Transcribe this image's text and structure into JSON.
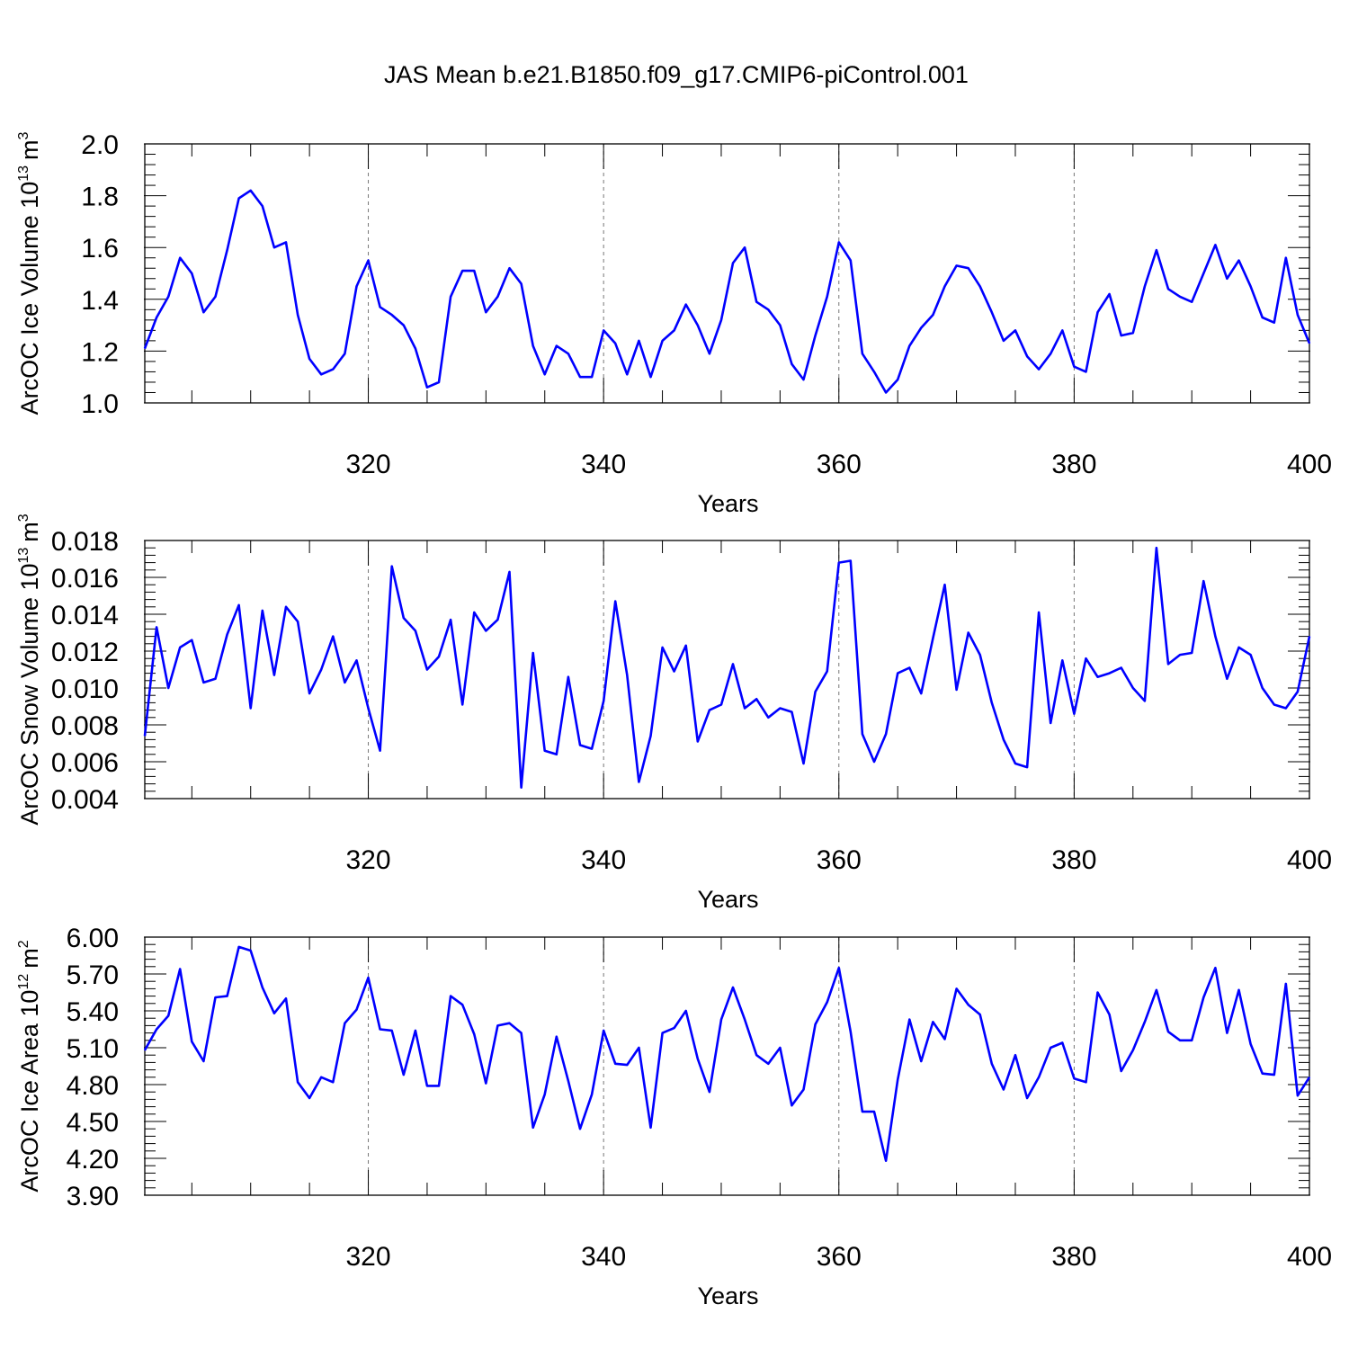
{
  "figure": {
    "title": "JAS Mean b.e21.B1850.f09_g17.CMIP6-piControl.001"
  },
  "chart_data": [
    {
      "type": "line",
      "title": "JAS Mean b.e21.B1850.f09_g17.CMIP6-piControl.001",
      "xlabel": "Years",
      "ylabel": "ArcOC Ice Volume 10",
      "ylabel_exp": "13",
      "ylabel_unit": "m",
      "ylabel_unit_exp": "3",
      "xlim": [
        301,
        400
      ],
      "ylim": [
        1.0,
        2.0
      ],
      "xticks": [
        320,
        340,
        360,
        380,
        400
      ],
      "yticks": [
        "1.0",
        "1.2",
        "1.4",
        "1.6",
        "1.8",
        "2.0"
      ],
      "grid": "vertical dashed lines at major x ticks",
      "series": [
        {
          "name": "ArcOC Ice Volume",
          "color": "#0000ff",
          "x_start": 301,
          "values": [
            1.21,
            1.33,
            1.41,
            1.56,
            1.5,
            1.35,
            1.41,
            1.59,
            1.79,
            1.82,
            1.76,
            1.6,
            1.62,
            1.34,
            1.17,
            1.11,
            1.13,
            1.19,
            1.45,
            1.55,
            1.37,
            1.34,
            1.3,
            1.21,
            1.06,
            1.08,
            1.41,
            1.51,
            1.51,
            1.35,
            1.41,
            1.52,
            1.46,
            1.22,
            1.11,
            1.22,
            1.19,
            1.1,
            1.1,
            1.28,
            1.23,
            1.11,
            1.24,
            1.1,
            1.24,
            1.28,
            1.38,
            1.3,
            1.19,
            1.32,
            1.54,
            1.6,
            1.39,
            1.36,
            1.3,
            1.15,
            1.09,
            1.26,
            1.41,
            1.62,
            1.55,
            1.19,
            1.12,
            1.04,
            1.09,
            1.22,
            1.29,
            1.34,
            1.45,
            1.53,
            1.52,
            1.45,
            1.35,
            1.24,
            1.28,
            1.18,
            1.13,
            1.19,
            1.28,
            1.14,
            1.12,
            1.35,
            1.42,
            1.26,
            1.27,
            1.45,
            1.59,
            1.44,
            1.41,
            1.39,
            1.5,
            1.61,
            1.48,
            1.55,
            1.45,
            1.33,
            1.31,
            1.56,
            1.34,
            1.23
          ]
        }
      ]
    },
    {
      "type": "line",
      "xlabel": "Years",
      "ylabel": "ArcOC Snow Volume 10",
      "ylabel_exp": "13",
      "ylabel_unit": "m",
      "ylabel_unit_exp": "3",
      "xlim": [
        301,
        400
      ],
      "ylim": [
        0.004,
        0.018
      ],
      "xticks": [
        320,
        340,
        360,
        380,
        400
      ],
      "yticks": [
        "0.004",
        "0.006",
        "0.008",
        "0.010",
        "0.012",
        "0.014",
        "0.016",
        "0.018"
      ],
      "grid": "vertical dashed lines at major x ticks",
      "series": [
        {
          "name": "ArcOC Snow Volume",
          "color": "#0000ff",
          "x_start": 301,
          "values": [
            0.0074,
            0.0133,
            0.01,
            0.0122,
            0.0126,
            0.0103,
            0.0105,
            0.0129,
            0.0145,
            0.0089,
            0.0142,
            0.0107,
            0.0144,
            0.0136,
            0.0097,
            0.011,
            0.0128,
            0.0103,
            0.0115,
            0.0089,
            0.0066,
            0.0166,
            0.0138,
            0.0131,
            0.011,
            0.0117,
            0.0137,
            0.0091,
            0.0141,
            0.0131,
            0.0137,
            0.0163,
            0.0046,
            0.0119,
            0.0066,
            0.0064,
            0.0106,
            0.0069,
            0.0067,
            0.0093,
            0.0147,
            0.0107,
            0.0049,
            0.0074,
            0.0122,
            0.0109,
            0.0123,
            0.0071,
            0.0088,
            0.0091,
            0.0113,
            0.0089,
            0.0094,
            0.0084,
            0.0089,
            0.0087,
            0.0059,
            0.0098,
            0.0109,
            0.0168,
            0.0169,
            0.0075,
            0.006,
            0.0075,
            0.0108,
            0.0111,
            0.0097,
            0.0127,
            0.0156,
            0.0099,
            0.013,
            0.0118,
            0.0092,
            0.0072,
            0.0059,
            0.0057,
            0.0141,
            0.0081,
            0.0115,
            0.0086,
            0.0116,
            0.0106,
            0.0108,
            0.0111,
            0.01,
            0.0093,
            0.0176,
            0.0113,
            0.0118,
            0.0119,
            0.0158,
            0.0128,
            0.0105,
            0.0122,
            0.0118,
            0.01,
            0.0091,
            0.0089,
            0.0098,
            0.0128
          ]
        }
      ]
    },
    {
      "type": "line",
      "xlabel": "Years",
      "ylabel": "ArcOC Ice Area 10",
      "ylabel_exp": "12",
      "ylabel_unit": "m",
      "ylabel_unit_exp": "2",
      "xlim": [
        301,
        400
      ],
      "ylim": [
        3.9,
        6.0
      ],
      "xticks": [
        320,
        340,
        360,
        380,
        400
      ],
      "yticks": [
        "3.90",
        "4.20",
        "4.50",
        "4.80",
        "5.10",
        "5.40",
        "5.70",
        "6.00"
      ],
      "grid": "vertical dashed lines at major x ticks",
      "series": [
        {
          "name": "ArcOC Ice Area",
          "color": "#0000ff",
          "x_start": 301,
          "values": [
            5.08,
            5.25,
            5.36,
            5.74,
            5.15,
            4.99,
            5.51,
            5.52,
            5.92,
            5.89,
            5.59,
            5.38,
            5.5,
            4.82,
            4.69,
            4.86,
            4.82,
            5.3,
            5.41,
            5.67,
            5.25,
            5.24,
            4.88,
            5.24,
            4.79,
            4.79,
            5.52,
            5.45,
            5.21,
            4.81,
            5.28,
            5.3,
            5.22,
            4.45,
            4.72,
            5.19,
            4.83,
            4.44,
            4.72,
            5.24,
            4.97,
            4.96,
            5.1,
            4.45,
            5.22,
            5.26,
            5.4,
            5.01,
            4.74,
            5.33,
            5.59,
            5.33,
            5.04,
            4.97,
            5.1,
            4.63,
            4.76,
            5.29,
            5.47,
            5.75,
            5.23,
            4.58,
            4.58,
            4.18,
            4.84,
            5.33,
            4.99,
            5.31,
            5.17,
            5.58,
            5.45,
            5.37,
            4.97,
            4.76,
            5.04,
            4.69,
            4.86,
            5.1,
            5.14,
            4.85,
            4.82,
            5.55,
            5.37,
            4.91,
            5.08,
            5.31,
            5.57,
            5.23,
            5.16,
            5.16,
            5.51,
            5.75,
            5.22,
            5.57,
            5.13,
            4.89,
            4.88,
            5.62,
            4.71,
            4.86
          ]
        }
      ]
    }
  ]
}
